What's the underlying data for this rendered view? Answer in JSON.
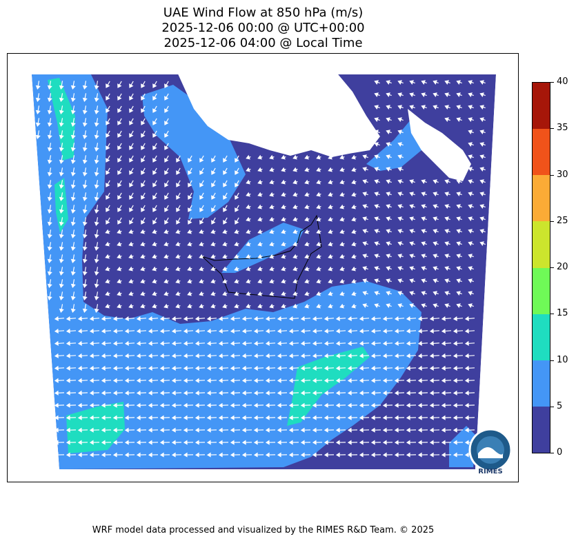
{
  "title": {
    "line1": "UAE Wind Flow at 850 hPa (m/s)",
    "line2": "2025-12-06 00:00 @ UTC+00:00",
    "line3": "2025-12-06 04:00 @ Local Time"
  },
  "colorbar": {
    "levels": [
      0,
      5,
      10,
      15,
      20,
      25,
      30,
      35,
      40
    ],
    "labels": [
      "0",
      "5",
      "10",
      "15",
      "20",
      "25",
      "30",
      "35",
      "40"
    ],
    "colors": [
      "#3f3f9e",
      "#4496f6",
      "#1fddc0",
      "#6ffa57",
      "#cce52d",
      "#fbab36",
      "#f0531a",
      "#a61609"
    ]
  },
  "map": {
    "land_color": "#ffffff",
    "ocean_hint": "missing-data",
    "arrow_color": "#ffffff",
    "border_color": "#000000",
    "logo_text": "RIMES"
  },
  "footer": "WRF model data processed and visualized by the RIMES R&D Team. © 2025"
}
